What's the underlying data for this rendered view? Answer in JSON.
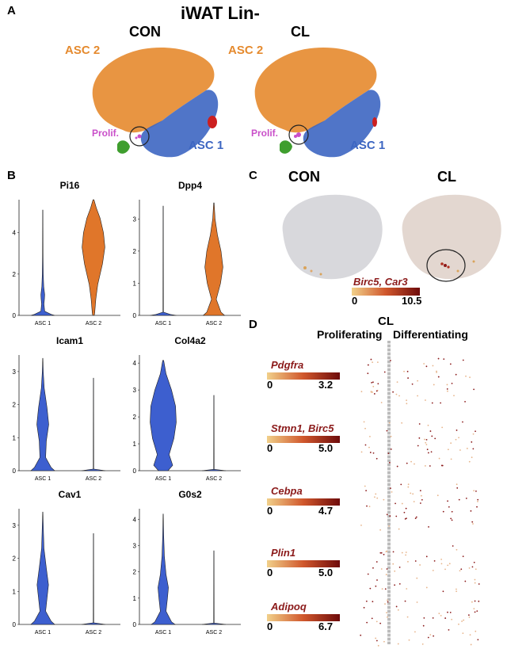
{
  "figure": {
    "main_title": "iWAT Lin-",
    "panel_labels": {
      "a": "A",
      "b": "B",
      "c": "C",
      "d": "D"
    }
  },
  "panel_a": {
    "conditions": [
      "CON",
      "CL"
    ],
    "clusters": {
      "asc2": "ASC 2",
      "asc1": "ASC 1",
      "prolif": "Prolif."
    },
    "colors": {
      "asc2": "#e58a2e",
      "asc1": "#3d66c2",
      "prolif": "#c94fc9",
      "green": "#3f9e2e",
      "red": "#cc1f1f"
    }
  },
  "panel_b": {
    "violins": [
      {
        "gene": "Pi16",
        "yticks": [
          "0",
          "2",
          "4"
        ],
        "ymax": 5.6,
        "categories": [
          "ASC 1",
          "ASC 2"
        ],
        "colors": [
          "#3d5fcf",
          "#e0762a"
        ]
      },
      {
        "gene": "Dpp4",
        "yticks": [
          "0",
          "1",
          "2",
          "3"
        ],
        "ymax": 3.6,
        "categories": [
          "ASC 1",
          "ASC 2"
        ],
        "colors": [
          "#3d5fcf",
          "#e0762a"
        ]
      },
      {
        "gene": "Icam1",
        "yticks": [
          "0",
          "1",
          "2",
          "3"
        ],
        "ymax": 3.5,
        "categories": [
          "ASC 1",
          "ASC 2"
        ],
        "colors": [
          "#3d5fcf",
          "#3d5fcf"
        ]
      },
      {
        "gene": "Col4a2",
        "yticks": [
          "0",
          "1",
          "2",
          "3",
          "4"
        ],
        "ymax": 4.3,
        "categories": [
          "ASC 1",
          "ASC 2"
        ],
        "colors": [
          "#3d5fcf",
          "#3d5fcf"
        ]
      },
      {
        "gene": "Cav1",
        "yticks": [
          "0",
          "1",
          "2",
          "3"
        ],
        "ymax": 3.5,
        "categories": [
          "ASC 1",
          "ASC 2"
        ],
        "colors": [
          "#3d5fcf",
          "#3d5fcf"
        ]
      },
      {
        "gene": "G0s2",
        "yticks": [
          "0",
          "1",
          "2",
          "3",
          "4"
        ],
        "ymax": 4.4,
        "categories": [
          "ASC 1",
          "ASC 2"
        ],
        "colors": [
          "#3d5fcf",
          "#3d5fcf"
        ]
      }
    ]
  },
  "panel_c": {
    "conditions": [
      "CON",
      "CL"
    ],
    "genes": "Birc5, Car3",
    "scale": {
      "min": "0",
      "max": "10.5"
    }
  },
  "panel_d": {
    "condition": "CL",
    "left_label": "Proliferating",
    "right_label": "Differentiating",
    "rows": [
      {
        "gene": "Pdgfra",
        "min": "0",
        "max": "3.2"
      },
      {
        "gene": "Stmn1, Birc5",
        "min": "0",
        "max": "5.0"
      },
      {
        "gene": "Cebpa",
        "min": "0",
        "max": "4.7"
      },
      {
        "gene": "Plin1",
        "min": "0",
        "max": "5.0"
      },
      {
        "gene": "Adipoq",
        "min": "0",
        "max": "6.7"
      }
    ]
  }
}
